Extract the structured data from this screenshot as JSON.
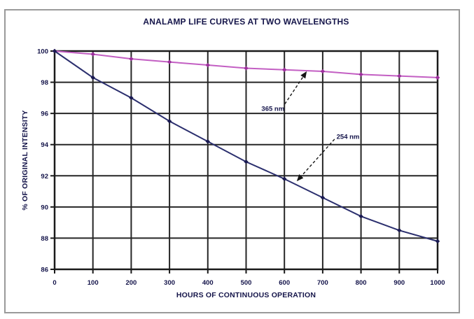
{
  "figure": {
    "background_color": "#ffffff",
    "frame_border_color": "#9a9a9a"
  },
  "chart_data": {
    "type": "line",
    "title": "ANALAMP LIFE CURVES AT TWO WAVELENGTHS",
    "xlabel": "HOURS OF CONTINUOUS OPERATION",
    "ylabel": "% OF ORIGINAL INTENSITY",
    "x": [
      0,
      100,
      200,
      300,
      400,
      500,
      600,
      700,
      800,
      900,
      1000
    ],
    "xlim": [
      0,
      1000
    ],
    "ylim": [
      86,
      100
    ],
    "x_ticks": [
      0,
      100,
      200,
      300,
      400,
      500,
      600,
      700,
      800,
      900,
      1000
    ],
    "y_ticks": [
      86,
      88,
      90,
      92,
      94,
      96,
      98,
      100
    ],
    "grid": true,
    "legend_position": "none",
    "text_color": "#14144a",
    "grid_color": "#262626",
    "axis_color": "#1a1a1a",
    "series": [
      {
        "name": "365 nm",
        "color": "#c35fc3",
        "marker_color": "#9c2f9c",
        "values": [
          100,
          99.8,
          99.5,
          99.3,
          99.1,
          98.9,
          98.8,
          98.7,
          98.5,
          98.4,
          98.3
        ]
      },
      {
        "name": "254 nm",
        "color": "#2b2f6e",
        "marker_color": "#191950",
        "values": [
          100,
          98.3,
          97.0,
          95.5,
          94.2,
          92.9,
          91.8,
          90.6,
          89.4,
          88.5,
          87.8
        ]
      }
    ],
    "annotations": [
      {
        "label": "365 nm",
        "label_x": 570,
        "label_y": 96.3,
        "arrow_from_x": 601,
        "arrow_from_y": 96.6,
        "arrow_to_x": 657,
        "arrow_to_y": 98.65
      },
      {
        "label": "254 nm",
        "label_x": 766,
        "label_y": 94.5,
        "arrow_from_x": 731,
        "arrow_from_y": 94.35,
        "arrow_to_x": 634,
        "arrow_to_y": 91.7
      }
    ]
  }
}
